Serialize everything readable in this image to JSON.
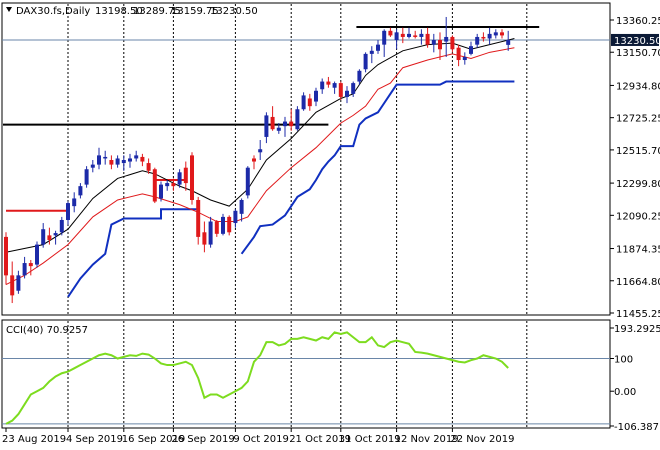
{
  "header": {
    "symbol": "DAX30.fs,Daily",
    "open": "13198.50",
    "high": "13289.75",
    "low": "13159.75",
    "close": "13230.50"
  },
  "price_tag": "13230.50",
  "colors": {
    "bull": "#1c2aa8",
    "bear": "#e0191b",
    "ma_fast": "#000000",
    "ma_slow": "#e0191b",
    "channel": "#1030c0",
    "cci": "#7ddc1f",
    "level_line": "#000000",
    "price_line": "#6a86a8",
    "tag_bg": "#0b1a36"
  },
  "chart_data": [
    {
      "type": "candlestick",
      "title": "DAX30.fs,Daily",
      "y_ticks": [
        "13360.25",
        "13150.70",
        "12934.80",
        "12725.25",
        "12515.70",
        "12299.80",
        "12090.25",
        "11874.35",
        "11664.80",
        "11455.25"
      ],
      "x_ticks": [
        "23 Aug 2019",
        "4 Sep 2019",
        "16 Sep 2019",
        "26 Sep 2019",
        "9 Oct 2019",
        "21 Oct 2019",
        "31 Oct 2019",
        "12 Nov 2019",
        "22 Nov 2019"
      ],
      "ylim": [
        11455.25,
        13360.25
      ],
      "last_price": 13230.5,
      "candles": [
        [
          11950,
          11980,
          11640,
          11700
        ],
        [
          11700,
          11790,
          11520,
          11570
        ],
        [
          11600,
          11730,
          11580,
          11700
        ],
        [
          11700,
          11820,
          11680,
          11780
        ],
        [
          11780,
          11800,
          11700,
          11760
        ],
        [
          11770,
          11920,
          11750,
          11900
        ],
        [
          11900,
          12040,
          11880,
          12000
        ],
        [
          11960,
          12010,
          11900,
          11930
        ],
        [
          11960,
          11990,
          11900,
          11975
        ],
        [
          11980,
          12080,
          11960,
          12060
        ],
        [
          12060,
          12180,
          12030,
          12170
        ],
        [
          12150,
          12240,
          12110,
          12200
        ],
        [
          12220,
          12300,
          12200,
          12280
        ],
        [
          12290,
          12410,
          12270,
          12390
        ],
        [
          12400,
          12450,
          12370,
          12420
        ],
        [
          12420,
          12530,
          12390,
          12480
        ],
        [
          12460,
          12510,
          12420,
          12470
        ],
        [
          12450,
          12480,
          12390,
          12420
        ],
        [
          12420,
          12480,
          12400,
          12460
        ],
        [
          12430,
          12480,
          12380,
          12450
        ],
        [
          12440,
          12490,
          12400,
          12460
        ],
        [
          12460,
          12510,
          12440,
          12480
        ],
        [
          12470,
          12490,
          12410,
          12440
        ],
        [
          12430,
          12460,
          12360,
          12380
        ],
        [
          12390,
          12400,
          12170,
          12180
        ],
        [
          12200,
          12310,
          12180,
          12290
        ],
        [
          12280,
          12320,
          12250,
          12300
        ],
        [
          12300,
          12330,
          12250,
          12280
        ],
        [
          12290,
          12390,
          12270,
          12370
        ],
        [
          12400,
          12440,
          12250,
          12300
        ],
        [
          12480,
          12500,
          12160,
          12190
        ],
        [
          12190,
          12210,
          11900,
          11950
        ],
        [
          11980,
          12050,
          11850,
          11900
        ],
        [
          11900,
          12080,
          11880,
          12050
        ],
        [
          12050,
          12060,
          11950,
          11970
        ],
        [
          11970,
          12100,
          11960,
          12080
        ],
        [
          12080,
          12090,
          11960,
          11980
        ],
        [
          12040,
          12130,
          12010,
          12120
        ],
        [
          12100,
          12200,
          12050,
          12190
        ],
        [
          12220,
          12410,
          12200,
          12400
        ],
        [
          12460,
          12480,
          12390,
          12440
        ],
        [
          12500,
          12580,
          12450,
          12520
        ],
        [
          12600,
          12760,
          12560,
          12740
        ],
        [
          12730,
          12800,
          12640,
          12650
        ],
        [
          12640,
          12690,
          12620,
          12660
        ],
        [
          12670,
          12730,
          12600,
          12700
        ],
        [
          12700,
          12780,
          12640,
          12670
        ],
        [
          12650,
          12800,
          12640,
          12780
        ],
        [
          12780,
          12890,
          12770,
          12870
        ],
        [
          12850,
          12880,
          12770,
          12800
        ],
        [
          12830,
          12920,
          12800,
          12900
        ],
        [
          12910,
          12980,
          12880,
          12960
        ],
        [
          12960,
          12990,
          12920,
          12940
        ],
        [
          12920,
          12960,
          12880,
          12950
        ],
        [
          12950,
          12960,
          12840,
          12860
        ],
        [
          12860,
          12930,
          12820,
          12900
        ],
        [
          12880,
          12960,
          12860,
          12950
        ],
        [
          12960,
          13040,
          12940,
          13030
        ],
        [
          13040,
          13150,
          13020,
          13140
        ],
        [
          13140,
          13190,
          13080,
          13160
        ],
        [
          13160,
          13230,
          13140,
          13200
        ],
        [
          13200,
          13300,
          13120,
          13290
        ],
        [
          13290,
          13310,
          13250,
          13260
        ],
        [
          13230,
          13300,
          13170,
          13280
        ],
        [
          13270,
          13310,
          13210,
          13250
        ],
        [
          13250,
          13310,
          13240,
          13270
        ],
        [
          13260,
          13290,
          13240,
          13250
        ],
        [
          13250,
          13300,
          13200,
          13270
        ],
        [
          13270,
          13310,
          13180,
          13200
        ],
        [
          13200,
          13270,
          13150,
          13230
        ],
        [
          13230,
          13280,
          13100,
          13170
        ],
        [
          13220,
          13380,
          13120,
          13250
        ],
        [
          13250,
          13260,
          13150,
          13170
        ],
        [
          13180,
          13200,
          13060,
          13100
        ],
        [
          13100,
          13150,
          13070,
          13120
        ],
        [
          13140,
          13220,
          13130,
          13190
        ],
        [
          13200,
          13270,
          13180,
          13250
        ],
        [
          13250,
          13280,
          13220,
          13240
        ],
        [
          13240,
          13310,
          13200,
          13270
        ],
        [
          13260,
          13300,
          13240,
          13280
        ],
        [
          13280,
          13300,
          13240,
          13260
        ],
        [
          13198.5,
          13289.75,
          13159.75,
          13230.5
        ]
      ],
      "ma_fast": [
        [
          0,
          11850
        ],
        [
          6,
          11900
        ],
        [
          10,
          12000
        ],
        [
          14,
          12200
        ],
        [
          18,
          12330
        ],
        [
          22,
          12380
        ],
        [
          24,
          12360
        ],
        [
          28,
          12280
        ],
        [
          30,
          12250
        ],
        [
          33,
          12190
        ],
        [
          36,
          12150
        ],
        [
          39,
          12260
        ],
        [
          42,
          12450
        ],
        [
          46,
          12590
        ],
        [
          50,
          12760
        ],
        [
          54,
          12850
        ],
        [
          56,
          12880
        ],
        [
          58,
          13000
        ],
        [
          60,
          13070
        ],
        [
          64,
          13160
        ],
        [
          68,
          13200
        ],
        [
          72,
          13210
        ],
        [
          75,
          13170
        ],
        [
          78,
          13200
        ],
        [
          82,
          13240
        ]
      ],
      "ma_slow": [
        [
          0,
          11640
        ],
        [
          3,
          11700
        ],
        [
          6,
          11780
        ],
        [
          10,
          11900
        ],
        [
          14,
          12080
        ],
        [
          18,
          12190
        ],
        [
          22,
          12230
        ],
        [
          24,
          12210
        ],
        [
          28,
          12160
        ],
        [
          31,
          12110
        ],
        [
          34,
          12050
        ],
        [
          37,
          12050
        ],
        [
          39,
          12080
        ],
        [
          42,
          12250
        ],
        [
          46,
          12400
        ],
        [
          50,
          12530
        ],
        [
          54,
          12690
        ],
        [
          56,
          12740
        ],
        [
          58,
          12800
        ],
        [
          60,
          12910
        ],
        [
          62,
          12950
        ],
        [
          64,
          13050
        ],
        [
          68,
          13100
        ],
        [
          72,
          13140
        ],
        [
          75,
          13110
        ],
        [
          78,
          13150
        ],
        [
          82,
          13180
        ]
      ],
      "channel_segments": [
        [
          [
            0,
            12120
          ],
          [
            10,
            12120
          ]
        ],
        [
          [
            24,
            12320
          ],
          [
            29,
            12320
          ]
        ],
        [
          [
            10,
            11560
          ],
          [
            12,
            11680
          ],
          [
            14,
            11770
          ],
          [
            16,
            11840
          ],
          [
            17,
            12030
          ],
          [
            19,
            12070
          ],
          [
            25,
            12070
          ],
          [
            25,
            12130
          ],
          [
            31,
            12130
          ]
        ],
        [
          [
            38,
            11840
          ],
          [
            40,
            11950
          ],
          [
            41,
            12020
          ],
          [
            43,
            12030
          ],
          [
            45,
            12090
          ],
          [
            47,
            12210
          ],
          [
            49,
            12260
          ],
          [
            50,
            12320
          ],
          [
            51,
            12390
          ],
          [
            52,
            12440
          ],
          [
            53,
            12480
          ],
          [
            54,
            12540
          ],
          [
            56,
            12540
          ],
          [
            57,
            12680
          ],
          [
            58,
            12720
          ],
          [
            60,
            12760
          ],
          [
            62,
            12880
          ],
          [
            63,
            12940
          ],
          [
            70,
            12940
          ],
          [
            71,
            12960
          ],
          [
            82,
            12960
          ]
        ]
      ],
      "levels": [
        {
          "value": 12680,
          "from": 0,
          "to": 52
        },
        {
          "value": 13315,
          "from": 57,
          "to": 86
        }
      ]
    },
    {
      "type": "line",
      "title": "CCI(40) 70.9257",
      "y_ticks": [
        "193.2925",
        "100",
        "0.00",
        "-106.3871"
      ],
      "ylim": [
        -106.3871,
        193.2925
      ],
      "reference_levels": [
        100,
        -100
      ],
      "series": [
        {
          "name": "CCI(40) 70.9257",
          "values": [
            -100,
            -90,
            -70,
            -40,
            -10,
            0,
            10,
            30,
            45,
            55,
            60,
            70,
            80,
            90,
            100,
            110,
            115,
            110,
            100,
            105,
            110,
            108,
            115,
            112,
            100,
            85,
            80,
            80,
            85,
            90,
            80,
            40,
            -20,
            -10,
            -10,
            -20,
            -10,
            0,
            10,
            30,
            90,
            110,
            150,
            150,
            140,
            145,
            160,
            160,
            165,
            160,
            155,
            165,
            160,
            180,
            175,
            180,
            165,
            150,
            150,
            165,
            140,
            135,
            150,
            155,
            150,
            145,
            120,
            118,
            115,
            110,
            105,
            100,
            95,
            90,
            88,
            95,
            100,
            110,
            105,
            100,
            90,
            71
          ]
        }
      ]
    }
  ]
}
